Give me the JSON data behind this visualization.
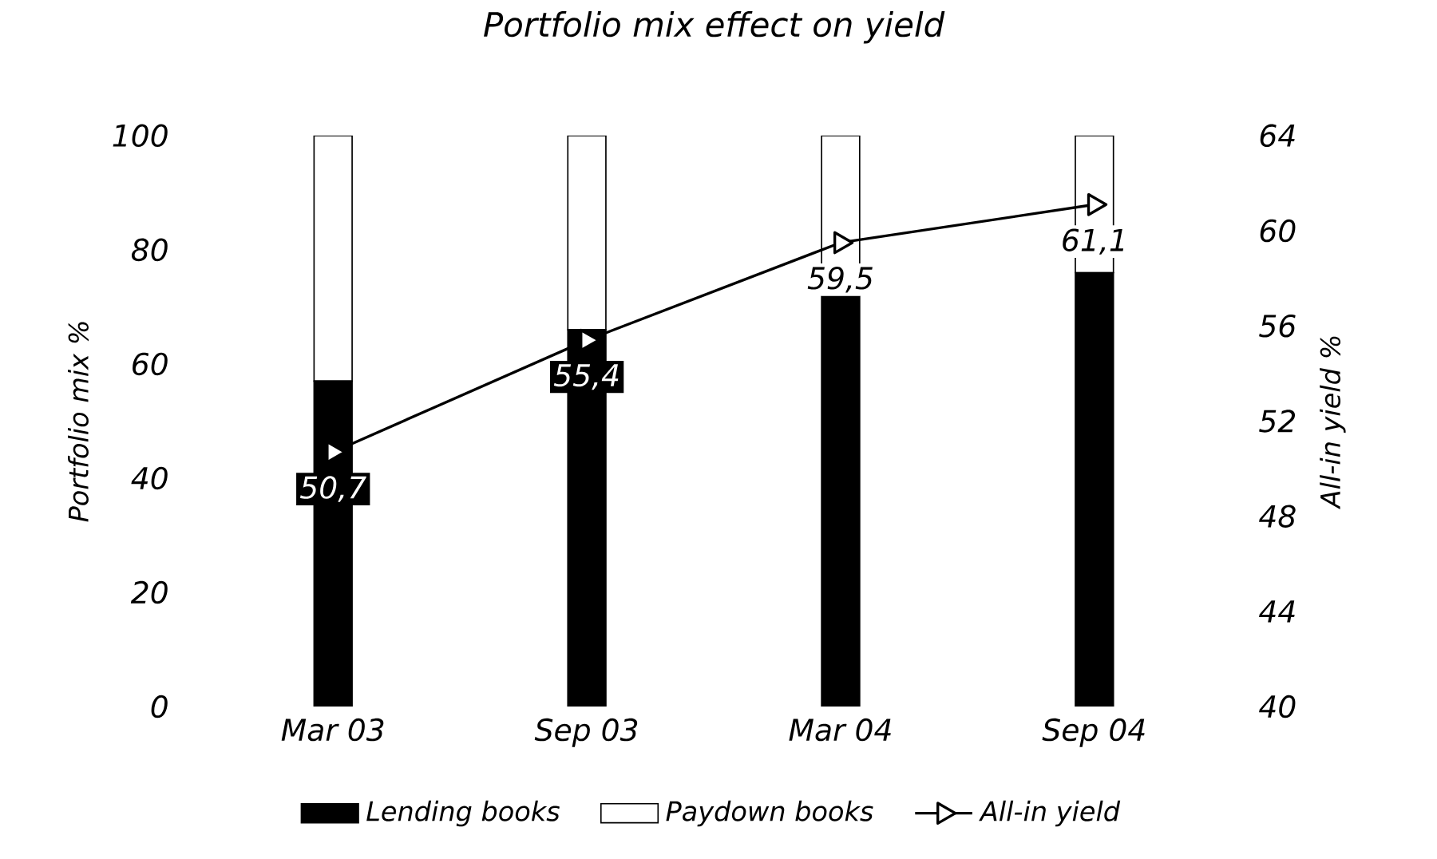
{
  "chart_data": {
    "type": "bar",
    "title": "Portfolio mix effect on yield",
    "ylabel": "Portfolio mix %",
    "y2label": "All-in yield %",
    "categories": [
      "Mar 03",
      "Sep 03",
      "Mar 04",
      "Sep 04"
    ],
    "stacked": true,
    "series": [
      {
        "name": "Lending books",
        "color": "#000000",
        "values": [
          57,
          66,
          72,
          76
        ]
      },
      {
        "name": "Paydown books",
        "color": "#ffffff",
        "values": [
          43,
          34,
          28,
          24
        ]
      },
      {
        "name": "All-in yield",
        "type": "line",
        "axis": "y2",
        "color": "#000000",
        "marker": "triangle",
        "values": [
          50.7,
          55.4,
          59.5,
          61.1
        ],
        "value_labels": [
          "50,7",
          "55,4",
          "59,5",
          "61,1"
        ]
      }
    ],
    "ylim": [
      0,
      100
    ],
    "yticks": [
      0,
      20,
      40,
      60,
      80,
      100
    ],
    "y2lim": [
      40,
      64
    ],
    "y2ticks": [
      40,
      44,
      48,
      52,
      56,
      60,
      64
    ],
    "legend": "bottom"
  }
}
